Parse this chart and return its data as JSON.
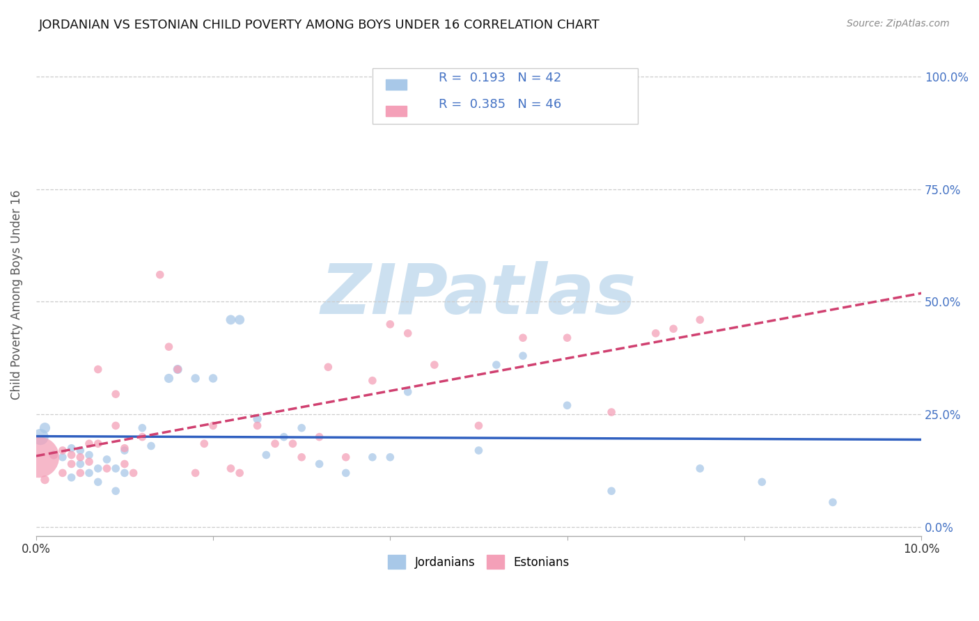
{
  "title": "JORDANIAN VS ESTONIAN CHILD POVERTY AMONG BOYS UNDER 16 CORRELATION CHART",
  "source": "Source: ZipAtlas.com",
  "ylabel": "Child Poverty Among Boys Under 16",
  "xlim": [
    0.0,
    0.1
  ],
  "ylim": [
    -0.02,
    1.05
  ],
  "yticks": [
    0.0,
    0.25,
    0.5,
    0.75,
    1.0
  ],
  "ytick_labels": [
    "0.0%",
    "25.0%",
    "50.0%",
    "75.0%",
    "100.0%"
  ],
  "xticks": [
    0.0,
    0.02,
    0.04,
    0.06,
    0.08,
    0.1
  ],
  "xtick_labels": [
    "0.0%",
    "",
    "",
    "",
    "",
    "10.0%"
  ],
  "jordanians_color": "#a8c8e8",
  "estonians_color": "#f4a0b8",
  "trendline_jordanians_color": "#3060c0",
  "trendline_estonians_color": "#d04070",
  "trendline_estonians_linestyle": "--",
  "trendline_jordanians_linestyle": "-",
  "legend_text_color": "#4472c4",
  "background_color": "#ffffff",
  "watermark_text": "ZIPatlas",
  "watermark_color": "#cce0f0",
  "R_jordanians": 0.193,
  "N_jordanians": 42,
  "R_estonians": 0.385,
  "N_estonians": 46,
  "jordanians_x": [
    0.0005,
    0.001,
    0.002,
    0.003,
    0.004,
    0.004,
    0.005,
    0.005,
    0.006,
    0.006,
    0.007,
    0.007,
    0.008,
    0.009,
    0.009,
    0.01,
    0.01,
    0.012,
    0.013,
    0.015,
    0.016,
    0.018,
    0.02,
    0.022,
    0.023,
    0.025,
    0.026,
    0.028,
    0.03,
    0.032,
    0.035,
    0.038,
    0.04,
    0.042,
    0.05,
    0.052,
    0.055,
    0.06,
    0.065,
    0.075,
    0.082,
    0.09
  ],
  "jordanians_y": [
    0.2,
    0.22,
    0.16,
    0.155,
    0.175,
    0.11,
    0.14,
    0.17,
    0.16,
    0.12,
    0.13,
    0.1,
    0.15,
    0.13,
    0.08,
    0.17,
    0.12,
    0.22,
    0.18,
    0.33,
    0.35,
    0.33,
    0.33,
    0.46,
    0.46,
    0.24,
    0.16,
    0.2,
    0.22,
    0.14,
    0.12,
    0.155,
    0.155,
    0.3,
    0.17,
    0.36,
    0.38,
    0.27,
    0.08,
    0.13,
    0.1,
    0.055
  ],
  "jordanians_size": [
    280,
    120,
    80,
    70,
    70,
    70,
    70,
    70,
    70,
    70,
    70,
    70,
    70,
    70,
    70,
    70,
    70,
    70,
    70,
    90,
    90,
    80,
    80,
    100,
    100,
    80,
    70,
    70,
    70,
    70,
    70,
    70,
    70,
    70,
    70,
    70,
    70,
    70,
    70,
    70,
    70,
    70
  ],
  "estonians_x": [
    0.0003,
    0.001,
    0.002,
    0.003,
    0.003,
    0.004,
    0.004,
    0.005,
    0.005,
    0.006,
    0.006,
    0.007,
    0.007,
    0.008,
    0.009,
    0.009,
    0.01,
    0.01,
    0.011,
    0.012,
    0.014,
    0.015,
    0.016,
    0.018,
    0.019,
    0.02,
    0.022,
    0.023,
    0.025,
    0.027,
    0.029,
    0.03,
    0.032,
    0.033,
    0.035,
    0.038,
    0.04,
    0.042,
    0.045,
    0.05,
    0.055,
    0.06,
    0.065,
    0.07,
    0.072,
    0.075
  ],
  "estonians_y": [
    0.155,
    0.105,
    0.16,
    0.12,
    0.17,
    0.16,
    0.14,
    0.155,
    0.12,
    0.145,
    0.185,
    0.185,
    0.35,
    0.13,
    0.225,
    0.295,
    0.14,
    0.175,
    0.12,
    0.2,
    0.56,
    0.4,
    0.35,
    0.12,
    0.185,
    0.225,
    0.13,
    0.12,
    0.225,
    0.185,
    0.185,
    0.155,
    0.2,
    0.355,
    0.155,
    0.325,
    0.45,
    0.43,
    0.36,
    0.225,
    0.42,
    0.42,
    0.255,
    0.43,
    0.44,
    0.46
  ],
  "estonians_size": [
    1800,
    80,
    70,
    70,
    70,
    70,
    70,
    70,
    70,
    70,
    70,
    70,
    70,
    70,
    70,
    70,
    70,
    70,
    70,
    70,
    70,
    70,
    70,
    70,
    70,
    70,
    70,
    70,
    70,
    70,
    70,
    70,
    70,
    70,
    70,
    70,
    70,
    70,
    70,
    70,
    70,
    70,
    70,
    70,
    70,
    70
  ]
}
